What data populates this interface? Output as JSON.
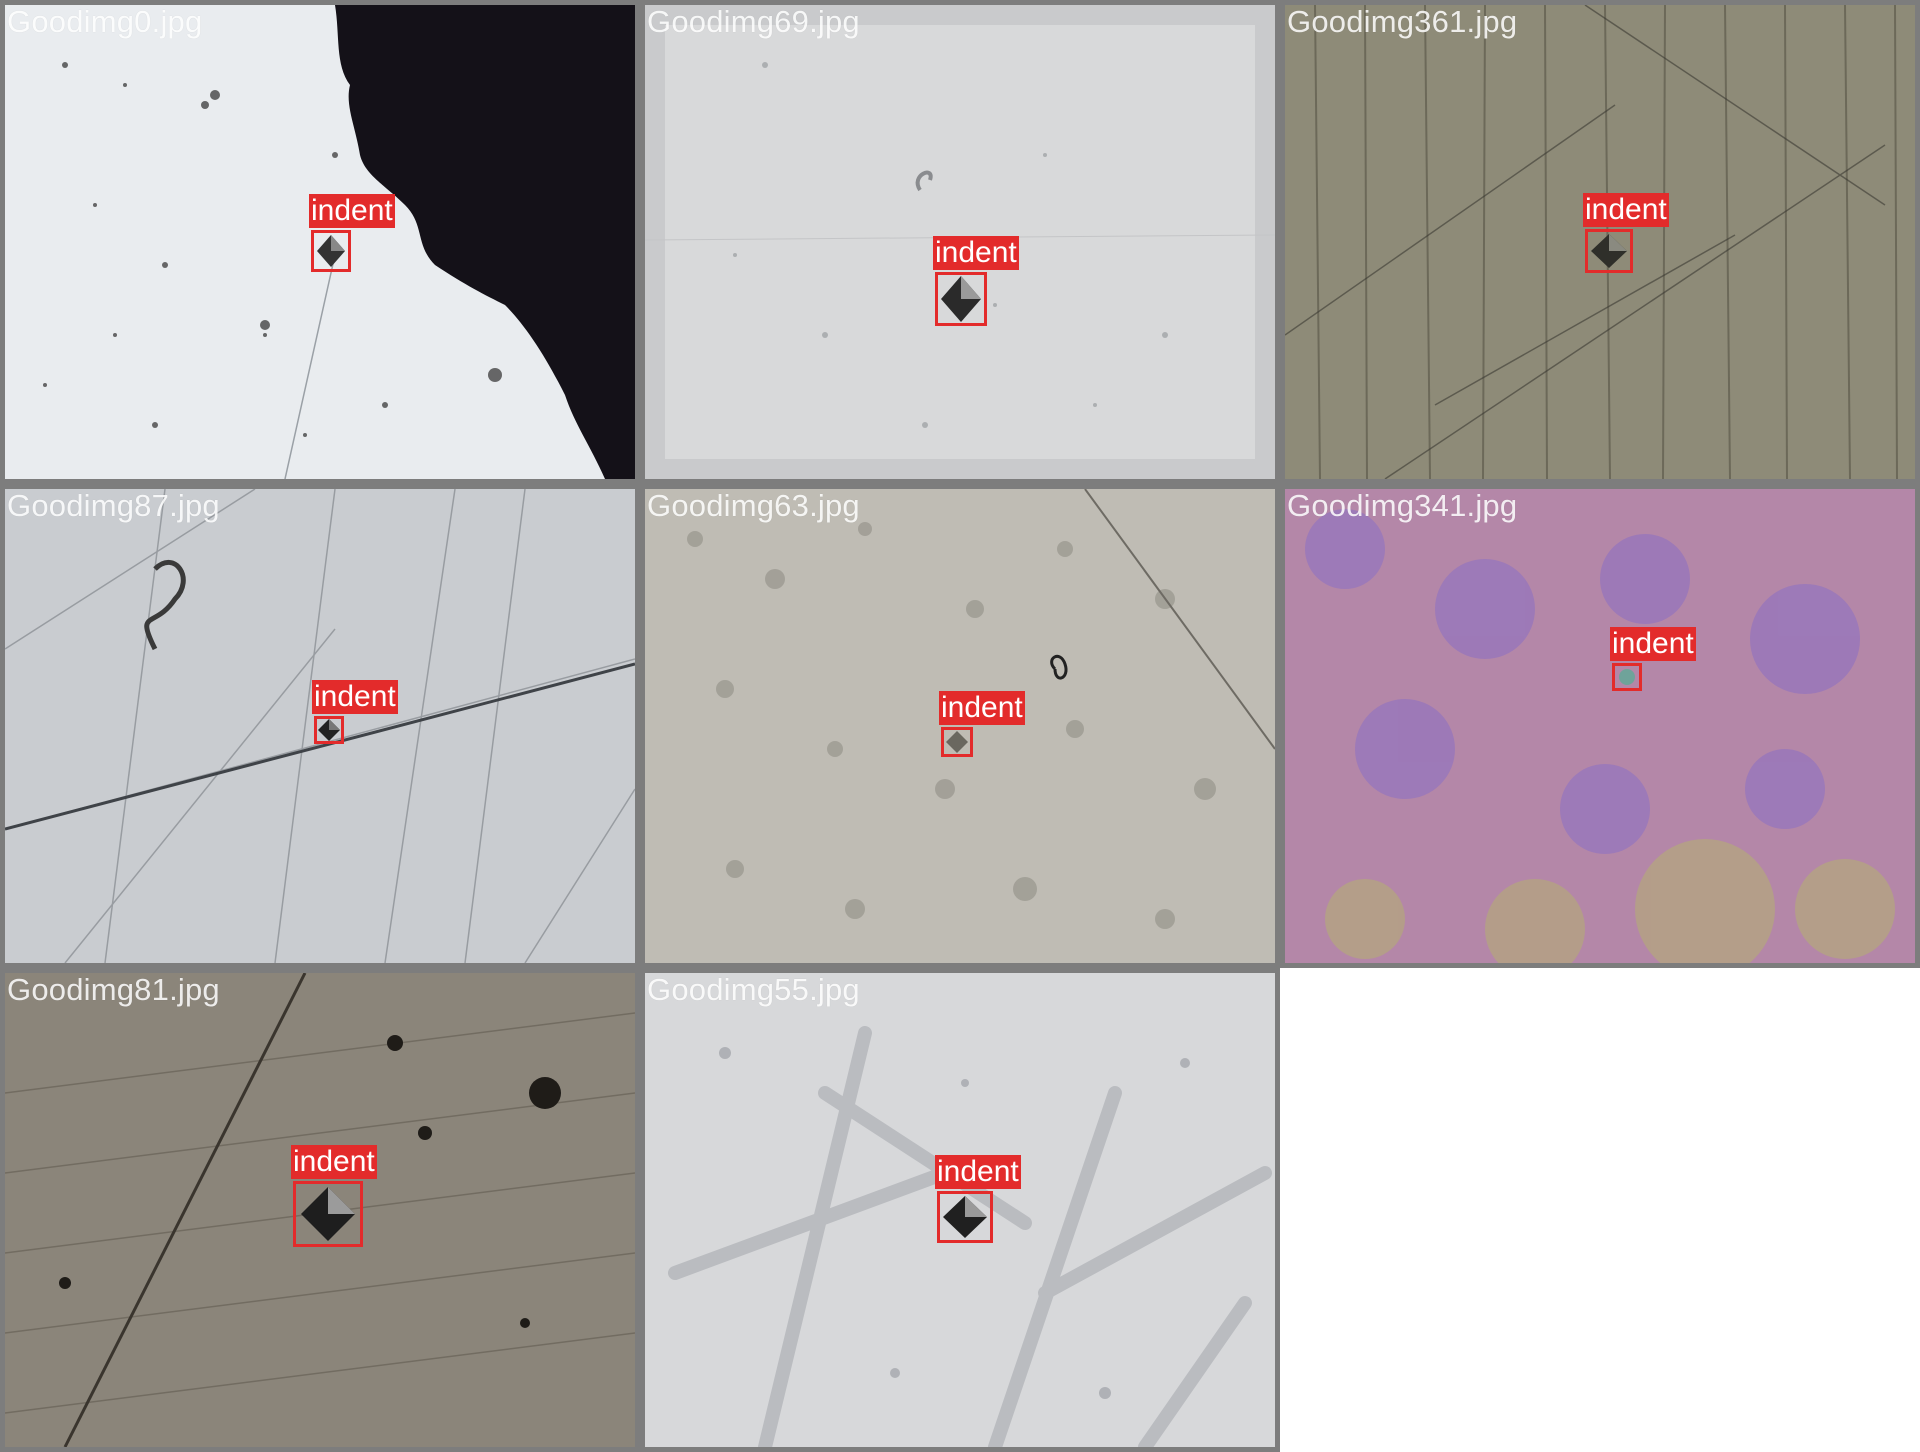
{
  "tiles": [
    {
      "file": "Goodimg0.jpg",
      "label": "indent"
    },
    {
      "file": "Goodimg69.jpg",
      "label": "indent"
    },
    {
      "file": "Goodimg361.jpg",
      "label": "indent"
    },
    {
      "file": "Goodimg87.jpg",
      "label": "indent"
    },
    {
      "file": "Goodimg63.jpg",
      "label": "indent"
    },
    {
      "file": "Goodimg341.jpg",
      "label": "indent"
    },
    {
      "file": "Goodimg81.jpg",
      "label": "indent"
    },
    {
      "file": "Goodimg55.jpg",
      "label": "indent"
    }
  ],
  "colors": {
    "box": "#e32b2b",
    "border": "#7d7d7d"
  }
}
